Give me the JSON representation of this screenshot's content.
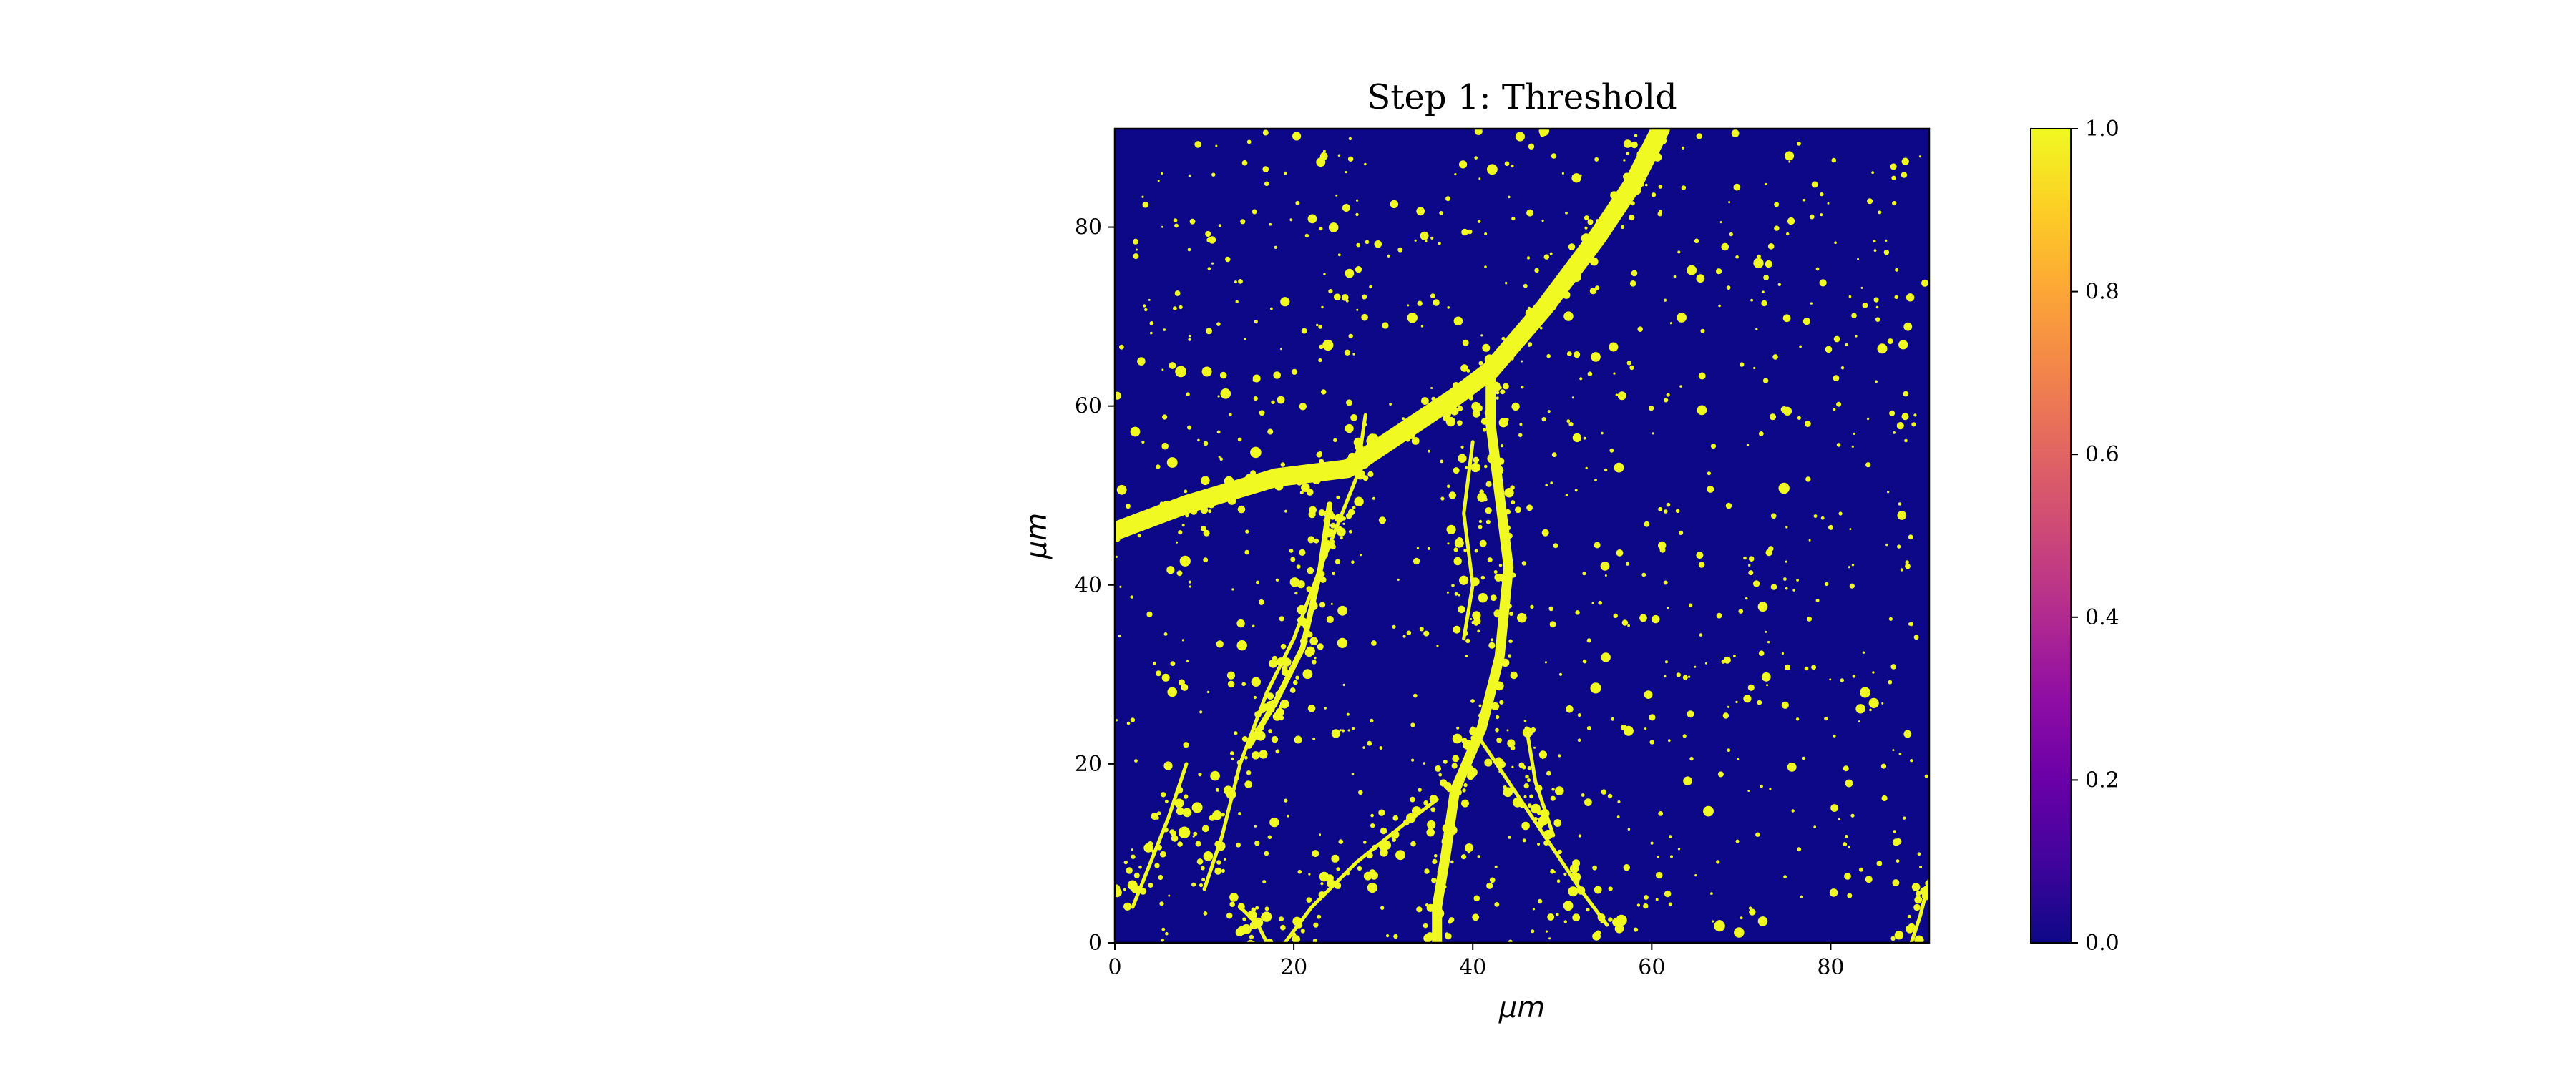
{
  "chart_data": {
    "type": "heatmap",
    "title": "Step 1: Threshold",
    "xlabel": "μm",
    "ylabel": "μm",
    "xlim": [
      0,
      91
    ],
    "ylim": [
      0,
      91
    ],
    "xticks": [
      0,
      20,
      40,
      60,
      80
    ],
    "yticks": [
      0,
      20,
      40,
      60,
      80
    ],
    "colormap": "plasma",
    "value_range": [
      0.0,
      1.0
    ],
    "colorbar": {
      "ticks": [
        0.0,
        0.2,
        0.4,
        0.6,
        0.8,
        1.0
      ],
      "tick_labels": [
        "0.0",
        "0.2",
        "0.4",
        "0.6",
        "0.8",
        "1.0"
      ],
      "placement": "right"
    },
    "grid": false,
    "background_value": 0,
    "background_color": "#0d0887",
    "foreground_value": 1,
    "foreground_color": "#f0f921",
    "structures": [
      {
        "type": "main-process",
        "points": [
          [
            0,
            46
          ],
          [
            8,
            49
          ],
          [
            18,
            52
          ],
          [
            26,
            53
          ],
          [
            32,
            57
          ],
          [
            38,
            61
          ],
          [
            42,
            64
          ],
          [
            48,
            71
          ],
          [
            54,
            79
          ],
          [
            58,
            85
          ],
          [
            61,
            91
          ]
        ]
      },
      {
        "type": "descending-branch",
        "points": [
          [
            42,
            64
          ],
          [
            42,
            58
          ],
          [
            43,
            50
          ],
          [
            44,
            42
          ],
          [
            43,
            32
          ],
          [
            41,
            24
          ],
          [
            38,
            17
          ],
          [
            37,
            10
          ],
          [
            36,
            4
          ],
          [
            36,
            0
          ]
        ]
      },
      {
        "type": "left-branch",
        "points": [
          [
            24,
            49
          ],
          [
            23,
            42
          ],
          [
            21,
            33
          ],
          [
            18,
            27
          ],
          [
            15,
            22
          ]
        ]
      },
      {
        "type": "fine-process",
        "points": [
          [
            28,
            59
          ],
          [
            27,
            52
          ],
          [
            25,
            47
          ],
          [
            23,
            42
          ],
          [
            20,
            34
          ],
          [
            17,
            28
          ],
          [
            14,
            20
          ],
          [
            12,
            12
          ],
          [
            10,
            6
          ]
        ]
      },
      {
        "type": "fine-process",
        "points": [
          [
            36,
            16
          ],
          [
            32,
            13
          ],
          [
            27,
            9
          ],
          [
            22,
            4
          ],
          [
            19,
            0
          ]
        ]
      },
      {
        "type": "fine-process",
        "points": [
          [
            40,
            24
          ],
          [
            44,
            18
          ],
          [
            48,
            12
          ],
          [
            52,
            6
          ],
          [
            55,
            2
          ]
        ]
      },
      {
        "type": "fine-process",
        "points": [
          [
            40,
            56
          ],
          [
            39,
            48
          ],
          [
            40,
            40
          ],
          [
            39,
            34
          ]
        ]
      },
      {
        "type": "fine-process",
        "points": [
          [
            46,
            24
          ],
          [
            47,
            18
          ],
          [
            49,
            12
          ]
        ]
      },
      {
        "type": "fine-process",
        "points": [
          [
            2,
            4
          ],
          [
            4,
            9
          ],
          [
            6,
            14
          ],
          [
            8,
            20
          ]
        ]
      },
      {
        "type": "fine-process",
        "points": [
          [
            14,
            4
          ],
          [
            16,
            2
          ],
          [
            17,
            0
          ]
        ]
      },
      {
        "type": "fine-process",
        "points": [
          [
            89,
            0
          ],
          [
            90,
            3
          ],
          [
            91,
            7
          ]
        ]
      }
    ]
  }
}
